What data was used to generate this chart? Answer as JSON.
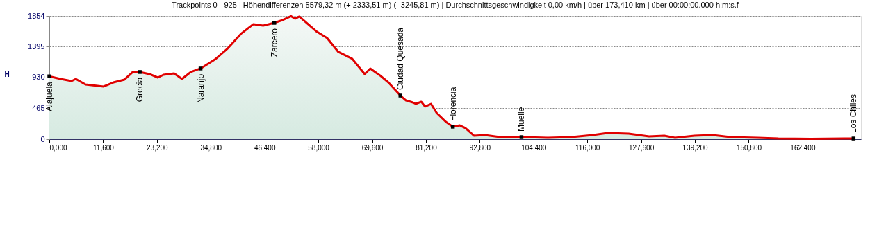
{
  "chart_data": {
    "type": "line",
    "title": "Trackpoints 0 - 925  |  Höhendifferenzen  5579,32 m   (+ 2333,51 m)  (- 3245,81 m)  |  Durchschnittsgeschwindigkeit  0,00 km/h  |  über  173,410 km  |  über  00:00:00.000 h:m:s.f",
    "ylabel": "H",
    "x": [
      0,
      2.4,
      4.8,
      5.7,
      7.8,
      11.7,
      13.8,
      16.2,
      18.0,
      19.5,
      21.6,
      23.4,
      24.6,
      26.9,
      28.6,
      30.5,
      32.6,
      35.9,
      38.3,
      41.3,
      44.0,
      46.1,
      48.5,
      50.3,
      52.1,
      53.0,
      53.9,
      57.5,
      59.9,
      62.3,
      65.3,
      68.0,
      69.2,
      71.3,
      73.1,
      75.7,
      76.9,
      78.4,
      79.0,
      80.2,
      81.0,
      82.3,
      83.5,
      85.5,
      87.0,
      88.5,
      89.7,
      91.6,
      93.9,
      97.2,
      101.8,
      107.5,
      112.6,
      117.2,
      120.4,
      124.9,
      129.3,
      132.6,
      134.9,
      139.1,
      143.0,
      146.9,
      152.7,
      157.2,
      164.2,
      171.4,
      173.4
    ],
    "series": [
      {
        "color": "#e00000",
        "values": [
          945,
          906,
          875,
          906,
          823,
          792,
          854,
          896,
          1011,
          1011,
          980,
          927,
          969,
          990,
          906,
          1011,
          1063,
          1209,
          1355,
          1584,
          1730,
          1709,
          1750,
          1792,
          1850,
          1813,
          1844,
          1625,
          1521,
          1313,
          1209,
          979,
          1063,
          959,
          854,
          656,
          583,
          552,
          531,
          563,
          490,
          531,
          396,
          260,
          188,
          208,
          167,
          52,
          63,
          31,
          31,
          21,
          31,
          63,
          94,
          83,
          42,
          52,
          21,
          52,
          63,
          31,
          21,
          10,
          5,
          10,
          10
        ]
      }
    ],
    "xlim": [
      0,
      175
    ],
    "ylim": [
      0,
      1854
    ],
    "xticks": [
      {
        "value": 0,
        "label": "0,000"
      },
      {
        "value": 11.6,
        "label": "11,600"
      },
      {
        "value": 23.2,
        "label": "23,200"
      },
      {
        "value": 34.8,
        "label": "34,800"
      },
      {
        "value": 46.4,
        "label": "46,400"
      },
      {
        "value": 58,
        "label": "58,000"
      },
      {
        "value": 69.6,
        "label": "69,600"
      },
      {
        "value": 81.2,
        "label": "81,200"
      },
      {
        "value": 92.8,
        "label": "92,800"
      },
      {
        "value": 104.4,
        "label": "104,400"
      },
      {
        "value": 116,
        "label": "116,000"
      },
      {
        "value": 127.6,
        "label": "127,600"
      },
      {
        "value": 139.2,
        "label": "139,200"
      },
      {
        "value": 150.8,
        "label": "150,800"
      },
      {
        "value": 162.4,
        "label": "162,400"
      }
    ],
    "yticks": [
      0,
      465,
      930,
      1395,
      1854
    ],
    "grid": "y",
    "annotations": [
      {
        "text": "Alajuela",
        "x": 0,
        "y": 945
      },
      {
        "text": "Grecia",
        "x": 19.5,
        "y": 1011
      },
      {
        "text": "Naranjo",
        "x": 32.6,
        "y": 1063
      },
      {
        "text": "Zarcero",
        "x": 48.5,
        "y": 1750
      },
      {
        "text": "Ciudad Quesada",
        "x": 75.7,
        "y": 656
      },
      {
        "text": "Florencia",
        "x": 87.0,
        "y": 188
      },
      {
        "text": "Muelle",
        "x": 101.8,
        "y": 31
      },
      {
        "text": "Los Chiles",
        "x": 173.4,
        "y": 10
      }
    ]
  }
}
